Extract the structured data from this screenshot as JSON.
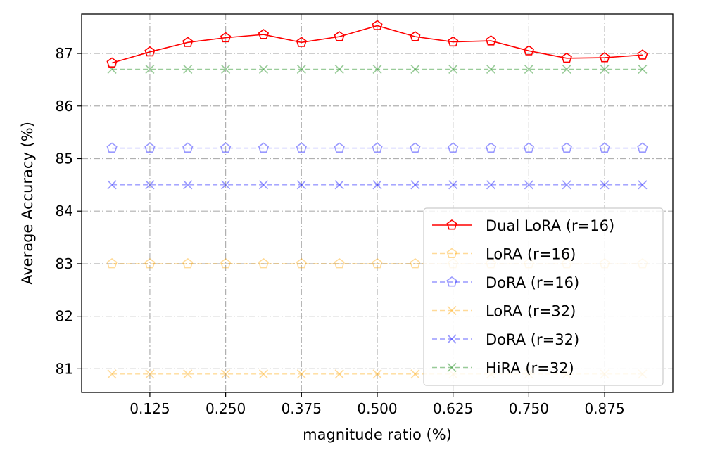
{
  "chart_data": {
    "type": "line",
    "title": "",
    "xlabel": "magnitude ratio (%)",
    "ylabel": "Average Accuracy (%)",
    "xlim": [
      0.0125,
      0.9875
    ],
    "ylim": [
      80.55,
      87.75
    ],
    "xticks": [
      0.125,
      0.25,
      0.375,
      0.5,
      0.625,
      0.75,
      0.875
    ],
    "xtick_labels": [
      "0.125",
      "0.250",
      "0.375",
      "0.500",
      "0.625",
      "0.750",
      "0.875"
    ],
    "yticks": [
      81,
      82,
      83,
      84,
      85,
      86,
      87
    ],
    "ytick_labels": [
      "81",
      "82",
      "83",
      "84",
      "85",
      "86",
      "87"
    ],
    "grid": true,
    "legend_position": "lower-right",
    "x": [
      0.0625,
      0.125,
      0.1875,
      0.25,
      0.3125,
      0.375,
      0.4375,
      0.5,
      0.5625,
      0.625,
      0.6875,
      0.75,
      0.8125,
      0.875,
      0.9375
    ],
    "series": [
      {
        "name": "Dual LoRA (r=16)",
        "color": "#ff0000",
        "marker": "pentagon",
        "linestyle": "solid",
        "alpha": 1.0,
        "values": [
          86.82,
          87.03,
          87.21,
          87.3,
          87.36,
          87.21,
          87.32,
          87.53,
          87.32,
          87.22,
          87.24,
          87.05,
          86.91,
          86.92,
          86.97
        ]
      },
      {
        "name": "LoRA (r=16)",
        "color": "#ffa500",
        "marker": "pentagon",
        "linestyle": "dashed",
        "alpha": 0.4,
        "values": [
          83.0,
          83.0,
          83.0,
          83.0,
          83.0,
          83.0,
          83.0,
          83.0,
          83.0,
          83.0,
          83.0,
          83.0,
          83.0,
          83.0,
          83.0
        ]
      },
      {
        "name": "DoRA (r=16)",
        "color": "#0000ff",
        "marker": "pentagon",
        "linestyle": "dashed",
        "alpha": 0.4,
        "values": [
          85.2,
          85.2,
          85.2,
          85.2,
          85.2,
          85.2,
          85.2,
          85.2,
          85.2,
          85.2,
          85.2,
          85.2,
          85.2,
          85.2,
          85.2
        ]
      },
      {
        "name": "LoRA (r=32)",
        "color": "#ffa500",
        "marker": "x",
        "linestyle": "dashed",
        "alpha": 0.4,
        "values": [
          80.9,
          80.9,
          80.9,
          80.9,
          80.9,
          80.9,
          80.9,
          80.9,
          80.9,
          80.9,
          80.9,
          80.9,
          80.9,
          80.9,
          80.9
        ]
      },
      {
        "name": "DoRA (r=32)",
        "color": "#0000ff",
        "marker": "x",
        "linestyle": "dashed",
        "alpha": 0.4,
        "values": [
          84.5,
          84.5,
          84.5,
          84.5,
          84.5,
          84.5,
          84.5,
          84.5,
          84.5,
          84.5,
          84.5,
          84.5,
          84.5,
          84.5,
          84.5
        ]
      },
      {
        "name": "HiRA (r=32)",
        "color": "#008000",
        "marker": "x",
        "linestyle": "dashed",
        "alpha": 0.4,
        "values": [
          86.7,
          86.7,
          86.7,
          86.7,
          86.7,
          86.7,
          86.7,
          86.7,
          86.7,
          86.7,
          86.7,
          86.7,
          86.7,
          86.7,
          86.7
        ]
      }
    ]
  }
}
